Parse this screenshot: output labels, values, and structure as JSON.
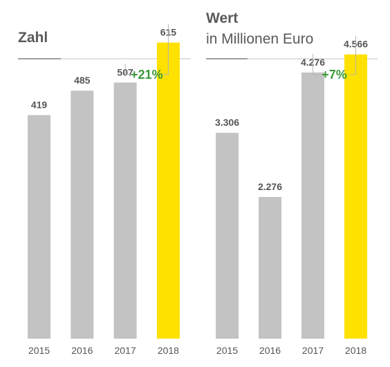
{
  "colors": {
    "bar_default": "#c3c3c3",
    "bar_highlight": "#ffe100",
    "growth_text": "#3a9a3a",
    "bracket": "#b5b5b5",
    "text": "#555555"
  },
  "chart_data": [
    {
      "type": "bar",
      "title": "Zahl",
      "subtitle": "",
      "categories": [
        "2015",
        "2016",
        "2017",
        "2018"
      ],
      "values": [
        419,
        485,
        507,
        615
      ],
      "value_labels": [
        "419",
        "485",
        "507",
        "615"
      ],
      "highlight_index": 3,
      "growth_label": "+21%",
      "ylim": [
        -185,
        730
      ],
      "grid": false,
      "legend": "none"
    },
    {
      "type": "bar",
      "title": "Wert",
      "subtitle": "in Millionen Euro",
      "categories": [
        "2015",
        "2016",
        "2017",
        "2018"
      ],
      "values": [
        3306,
        2276,
        4276,
        4566
      ],
      "value_labels": [
        "3.306",
        "2.276",
        "4.276",
        "4.566"
      ],
      "highlight_index": 3,
      "growth_label": "+7%",
      "ylim": [
        0,
        5440
      ],
      "grid": false,
      "legend": "none"
    }
  ]
}
